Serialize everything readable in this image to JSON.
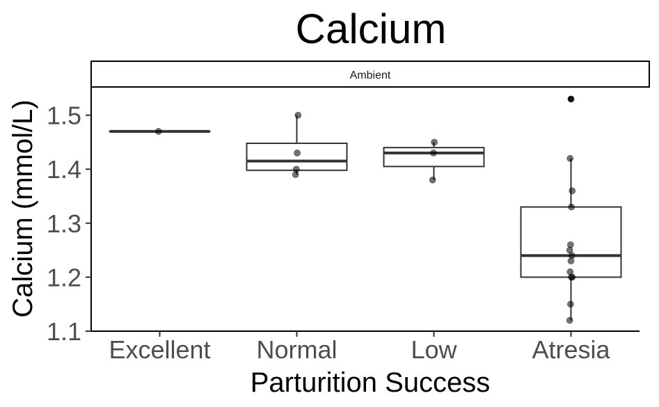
{
  "chart_data": {
    "type": "box",
    "title": "Calcium",
    "facet": "Ambient",
    "xlabel": "Parturition Success",
    "ylabel": "Calcium (mmol/L)",
    "categories": [
      "Excellent",
      "Normal",
      "Low",
      "Atresia"
    ],
    "ylim": [
      1.1,
      1.55
    ],
    "yticks": [
      1.1,
      1.2,
      1.3,
      1.4,
      1.5
    ],
    "ytick_labels": [
      "1.1",
      "1.2",
      "1.3",
      "1.4",
      "1.5"
    ],
    "grid": false,
    "boxes": [
      {
        "category": "Excellent",
        "min": 1.47,
        "q1": 1.47,
        "median": 1.47,
        "q3": 1.47,
        "max": 1.47
      },
      {
        "category": "Normal",
        "min": 1.39,
        "q1": 1.398,
        "median": 1.415,
        "q3": 1.448,
        "max": 1.5
      },
      {
        "category": "Low",
        "min": 1.38,
        "q1": 1.405,
        "median": 1.43,
        "q3": 1.44,
        "max": 1.45
      },
      {
        "category": "Atresia",
        "min": 1.12,
        "q1": 1.2,
        "median": 1.24,
        "q3": 1.33,
        "max": 1.42
      }
    ],
    "outliers": [
      {
        "category": "Atresia",
        "value": 1.53
      }
    ],
    "points": [
      {
        "category": "Excellent",
        "values": [
          1.47
        ]
      },
      {
        "category": "Normal",
        "values": [
          1.39,
          1.4,
          1.43,
          1.5
        ]
      },
      {
        "category": "Low",
        "values": [
          1.38,
          1.43,
          1.45
        ]
      },
      {
        "category": "Atresia",
        "values": [
          1.12,
          1.15,
          1.2,
          1.2,
          1.21,
          1.23,
          1.24,
          1.25,
          1.26,
          1.33,
          1.36,
          1.42,
          1.53
        ]
      }
    ]
  }
}
